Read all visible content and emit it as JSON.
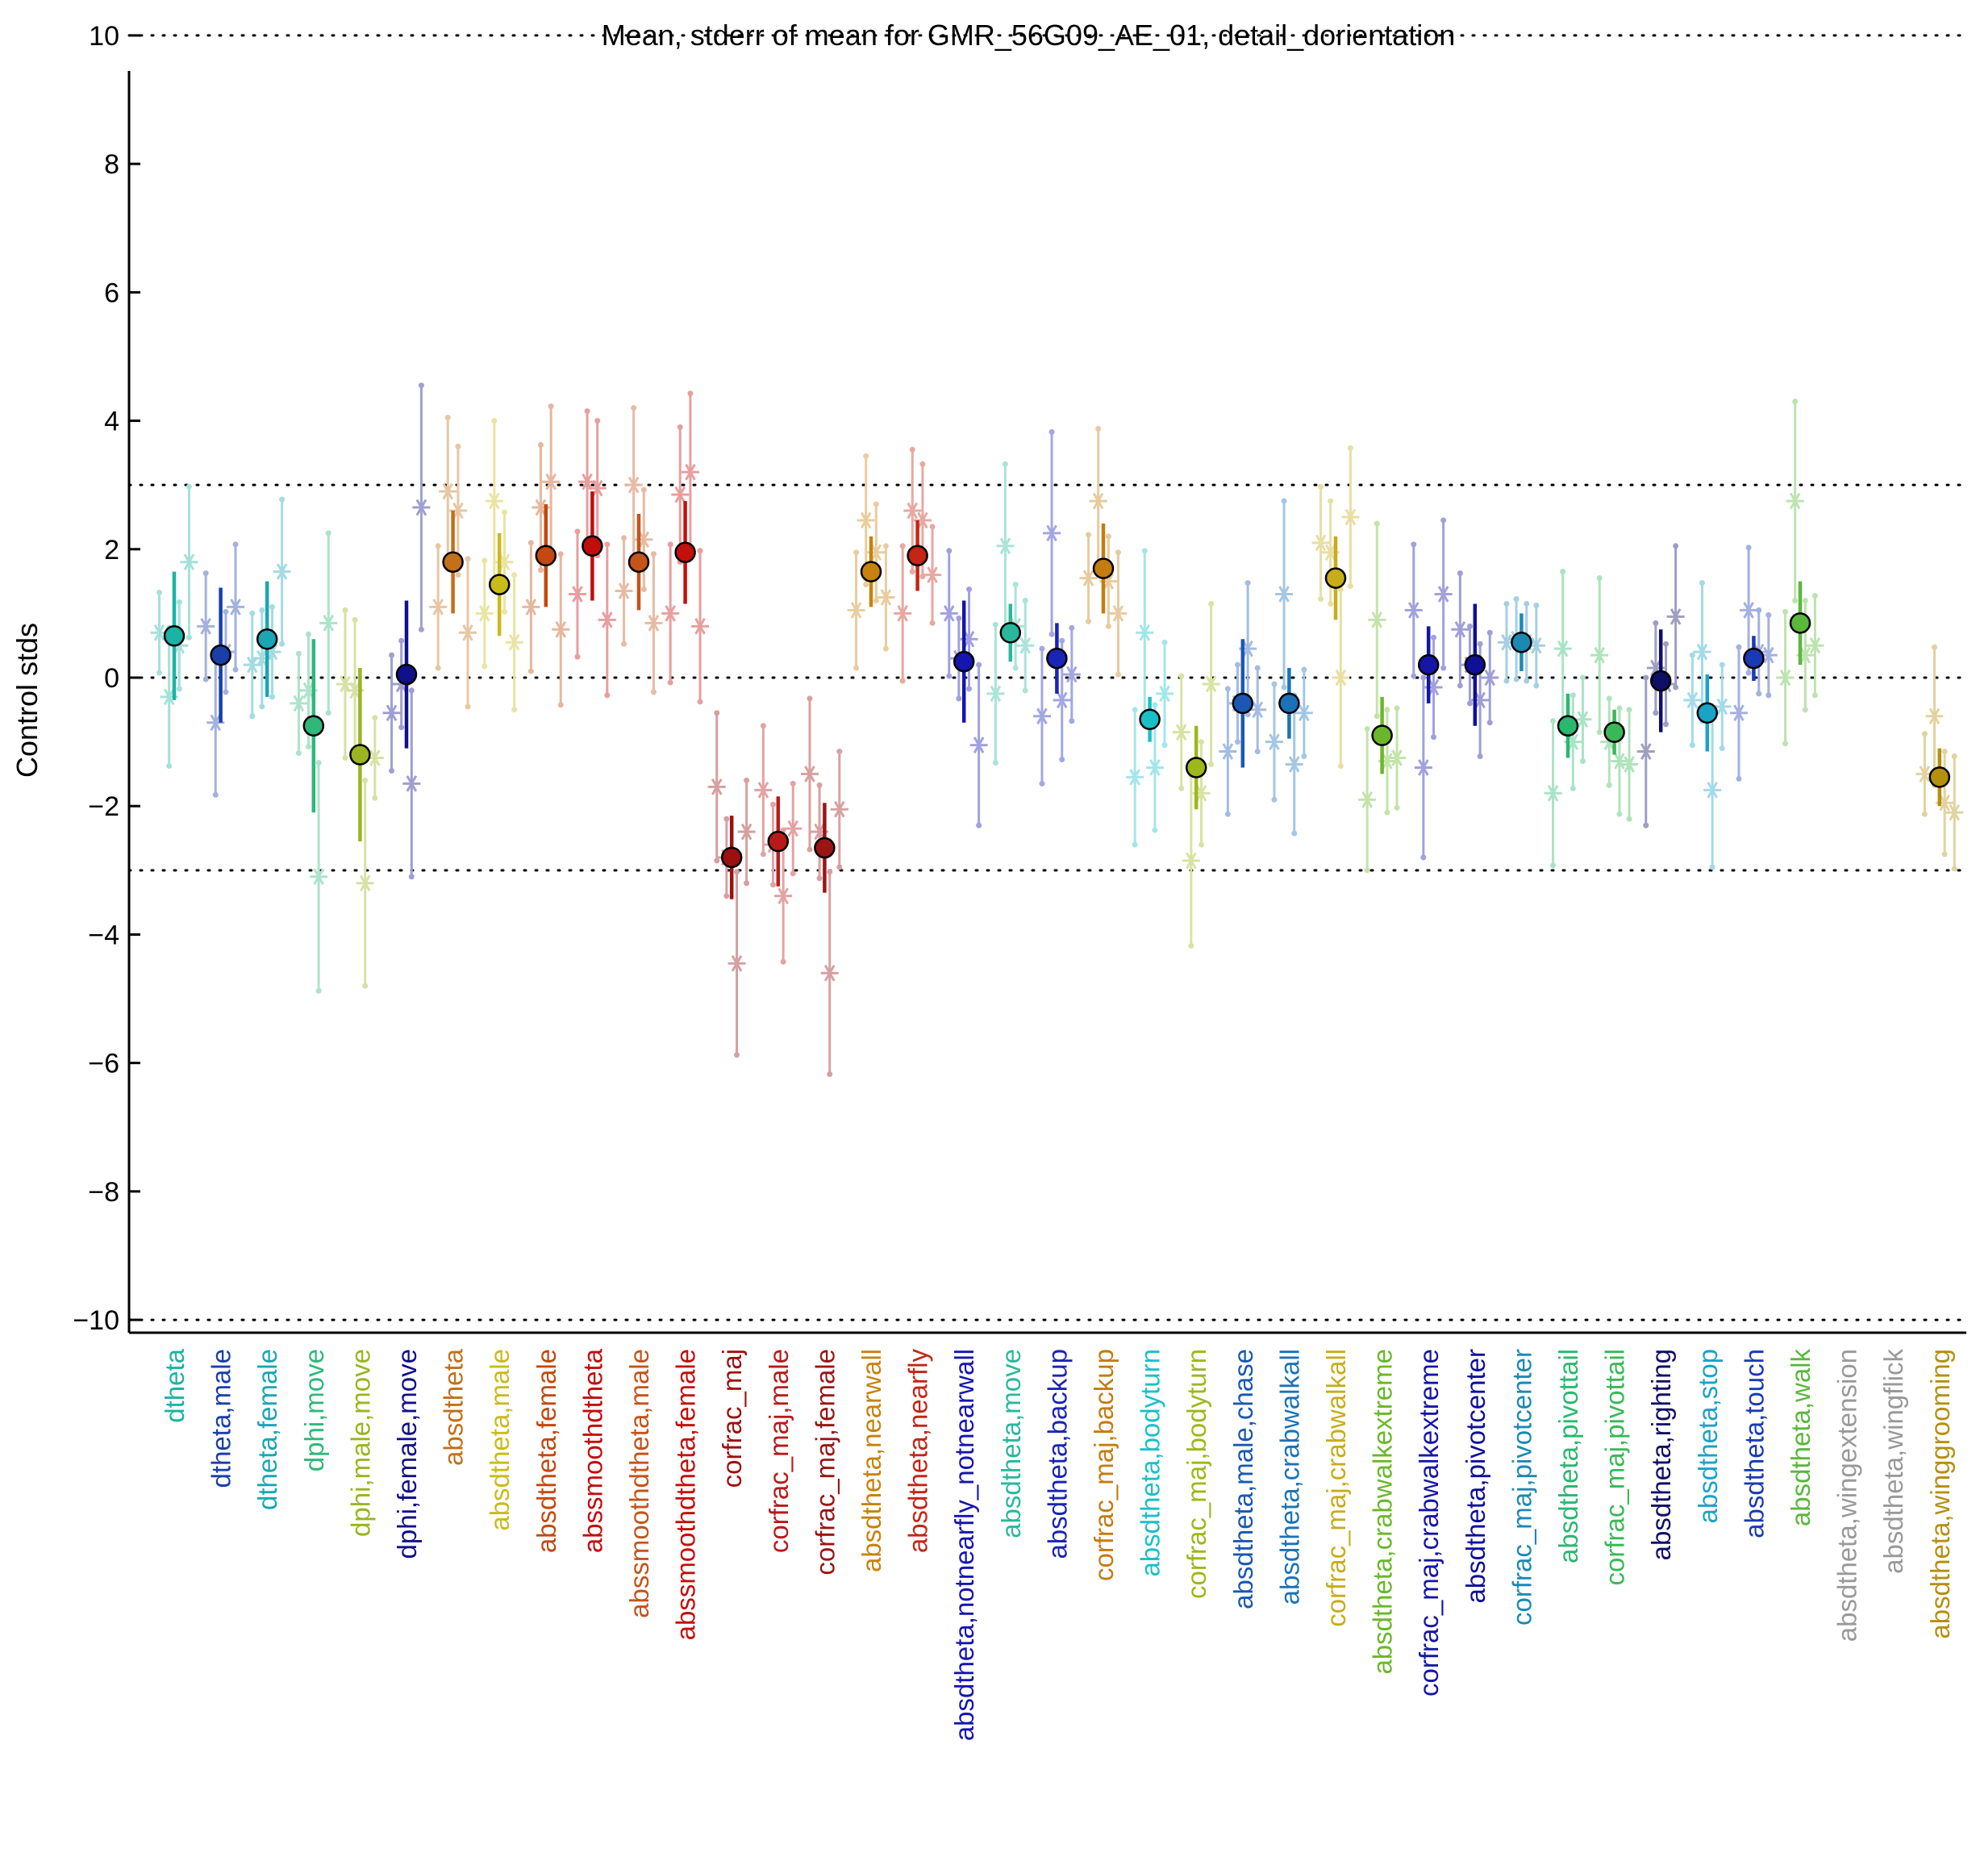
{
  "chart_data": {
    "type": "scatter",
    "title": "Mean, stderr of mean for GMR_56G09_AE_01, detail_dorientation",
    "ylabel": "Control stds",
    "xlabel": "",
    "ylim": [
      -10.2,
      10.2
    ],
    "yticks": [
      10,
      8,
      6,
      4,
      2,
      0,
      -2,
      -4,
      -6,
      -8,
      -10
    ],
    "reference_lines": [
      10,
      3,
      0,
      -3,
      -10
    ],
    "grid": false,
    "legend": "none",
    "categories": [
      {
        "label": "dtheta",
        "color": "#1bb3a3",
        "mean": 0.65,
        "stderr": 1.0,
        "lines": [
          0.7,
          -0.3,
          0.5,
          1.8
        ]
      },
      {
        "label": "dtheta,male",
        "color": "#1a3fa8",
        "mean": 0.35,
        "stderr": 1.05,
        "lines": [
          0.8,
          -0.7,
          0.4,
          1.1
        ]
      },
      {
        "label": "dtheta,female",
        "color": "#1aa6b3",
        "mean": 0.6,
        "stderr": 0.9,
        "lines": [
          0.2,
          0.3,
          0.4,
          1.65
        ]
      },
      {
        "label": "dphi,move",
        "color": "#2fb87a",
        "mean": -0.75,
        "stderr": 1.35,
        "lines": [
          -0.4,
          -0.2,
          -3.1,
          0.85
        ]
      },
      {
        "label": "dphi,male,move",
        "color": "#9ab51f",
        "mean": -1.2,
        "stderr": 1.35,
        "lines": [
          -0.1,
          -0.2,
          -3.2,
          -1.25
        ]
      },
      {
        "label": "dphi,female,move",
        "color": "#10108a",
        "mean": 0.05,
        "stderr": 1.15,
        "lines": [
          -0.55,
          -0.1,
          -1.65,
          2.65
        ]
      },
      {
        "label": "absdtheta",
        "color": "#c2701a",
        "mean": 1.8,
        "stderr": 0.8,
        "lines": [
          1.1,
          2.9,
          2.6,
          0.7
        ]
      },
      {
        "label": "absdtheta,male",
        "color": "#c9bb1a",
        "mean": 1.45,
        "stderr": 0.8,
        "lines": [
          1.0,
          2.75,
          1.8,
          0.55
        ]
      },
      {
        "label": "absdtheta,female",
        "color": "#c4480f",
        "mean": 1.9,
        "stderr": 0.8,
        "lines": [
          1.1,
          2.65,
          3.05,
          0.75
        ]
      },
      {
        "label": "abssmoothdtheta",
        "color": "#c20d0d",
        "mean": 2.05,
        "stderr": 0.85,
        "lines": [
          1.3,
          3.05,
          2.95,
          0.9
        ]
      },
      {
        "label": "abssmoothdtheta,male",
        "color": "#c4541a",
        "mean": 1.8,
        "stderr": 0.75,
        "lines": [
          1.35,
          3.0,
          2.15,
          0.85
        ]
      },
      {
        "label": "abssmoothdtheta,female",
        "color": "#c2100d",
        "mean": 1.95,
        "stderr": 0.8,
        "lines": [
          1.0,
          2.85,
          3.2,
          0.8
        ]
      },
      {
        "label": "corfrac_maj",
        "color": "#9c1010",
        "mean": -2.8,
        "stderr": 0.65,
        "lines": [
          -1.7,
          -2.8,
          -4.45,
          -2.4
        ]
      },
      {
        "label": "corfrac_maj,male",
        "color": "#b81a1a",
        "mean": -2.55,
        "stderr": 0.7,
        "lines": [
          -1.75,
          -2.6,
          -3.4,
          -2.35
        ]
      },
      {
        "label": "corfrac_maj,female",
        "color": "#9a1515",
        "mean": -2.65,
        "stderr": 0.7,
        "lines": [
          -1.5,
          -2.4,
          -4.6,
          -2.05
        ]
      },
      {
        "label": "absdtheta,nearwall",
        "color": "#c7820f",
        "mean": 1.65,
        "stderr": 0.55,
        "lines": [
          1.05,
          2.45,
          1.95,
          1.25
        ]
      },
      {
        "label": "absdtheta,nearfly",
        "color": "#c42515",
        "mean": 1.9,
        "stderr": 0.55,
        "lines": [
          1.0,
          2.6,
          2.45,
          1.6
        ]
      },
      {
        "label": "absdtheta,notnearfly_notnearwall",
        "color": "#1515b0",
        "mean": 0.25,
        "stderr": 0.95,
        "lines": [
          1.0,
          0.3,
          0.6,
          -1.05
        ]
      },
      {
        "label": "absdtheta,move",
        "color": "#2ab89c",
        "mean": 0.7,
        "stderr": 0.45,
        "lines": [
          -0.25,
          2.05,
          0.8,
          0.5
        ]
      },
      {
        "label": "absdtheta,backup",
        "color": "#1a24b5",
        "mean": 0.3,
        "stderr": 0.55,
        "lines": [
          -0.6,
          2.25,
          -0.35,
          0.05
        ]
      },
      {
        "label": "corfrac_maj,backup",
        "color": "#c47c10",
        "mean": 1.7,
        "stderr": 0.7,
        "lines": [
          1.55,
          2.75,
          1.5,
          1.0
        ]
      },
      {
        "label": "absdtheta,bodyturn",
        "color": "#1ac0c7",
        "mean": -0.65,
        "stderr": 0.35,
        "lines": [
          -1.55,
          0.7,
          -1.4,
          -0.25
        ]
      },
      {
        "label": "corfrac_maj,bodyturn",
        "color": "#9cb81a",
        "mean": -1.4,
        "stderr": 0.65,
        "lines": [
          -0.85,
          -2.85,
          -1.8,
          -0.1
        ]
      },
      {
        "label": "absdtheta,male,chase",
        "color": "#1a58b3",
        "mean": -0.4,
        "stderr": 1.0,
        "lines": [
          -1.15,
          -0.4,
          0.45,
          -0.5
        ]
      },
      {
        "label": "absdtheta,crabwalkall",
        "color": "#1a73b8",
        "mean": -0.4,
        "stderr": 0.55,
        "lines": [
          -1.0,
          1.3,
          -1.35,
          -0.55
        ]
      },
      {
        "label": "corfrac_maj,crabwalkall",
        "color": "#c7ad1a",
        "mean": 1.55,
        "stderr": 0.65,
        "lines": [
          2.1,
          1.95,
          0.0,
          2.5
        ]
      },
      {
        "label": "absdtheta,crabwalkextreme",
        "color": "#6ab82a",
        "mean": -0.9,
        "stderr": 0.6,
        "lines": [
          -1.9,
          0.9,
          -1.3,
          -1.25
        ]
      },
      {
        "label": "corfrac_maj,crabwalkextreme",
        "color": "#1515a8",
        "mean": 0.2,
        "stderr": 0.6,
        "lines": [
          1.05,
          -1.4,
          -0.15,
          1.3
        ]
      },
      {
        "label": "absdtheta,pivotcenter",
        "color": "#0f0f99",
        "mean": 0.2,
        "stderr": 0.95,
        "lines": [
          0.75,
          0.2,
          -0.35,
          0.0
        ]
      },
      {
        "label": "corfrac_maj,pivotcenter",
        "color": "#1a8ab5",
        "mean": 0.55,
        "stderr": 0.45,
        "lines": [
          0.55,
          0.6,
          0.55,
          0.5
        ]
      },
      {
        "label": "absdtheta,pivottail",
        "color": "#2ab870",
        "mean": -0.75,
        "stderr": 0.5,
        "lines": [
          -1.8,
          0.45,
          -1.0,
          -0.65
        ]
      },
      {
        "label": "corfrac_maj,pivottail",
        "color": "#3ab858",
        "mean": -0.85,
        "stderr": 0.35,
        "lines": [
          0.35,
          -1.0,
          -1.3,
          -1.35
        ]
      },
      {
        "label": "absdtheta,righting",
        "color": "#0f0f66",
        "mean": -0.05,
        "stderr": 0.8,
        "lines": [
          -1.15,
          0.15,
          -0.1,
          0.95
        ]
      },
      {
        "label": "absdtheta,stop",
        "color": "#1aa3c7",
        "mean": -0.55,
        "stderr": 0.6,
        "lines": [
          -0.35,
          0.4,
          -1.75,
          -0.45
        ]
      },
      {
        "label": "absdtheta,touch",
        "color": "#1a3ab5",
        "mean": 0.3,
        "stderr": 0.35,
        "lines": [
          -0.55,
          1.05,
          0.4,
          0.35
        ]
      },
      {
        "label": "absdtheta,walk",
        "color": "#5ab83a",
        "mean": 0.85,
        "stderr": 0.65,
        "lines": [
          0.0,
          2.75,
          0.35,
          0.5
        ]
      },
      {
        "label": "absdtheta,wingextension",
        "color": "#999999"
      },
      {
        "label": "absdtheta,wingflick",
        "color": "#999999"
      },
      {
        "label": "absdtheta,winggrooming",
        "color": "#b5900f",
        "mean": -1.55,
        "stderr": 0.45,
        "lines": [
          -1.5,
          -0.6,
          -1.95,
          -2.1
        ]
      }
    ]
  }
}
